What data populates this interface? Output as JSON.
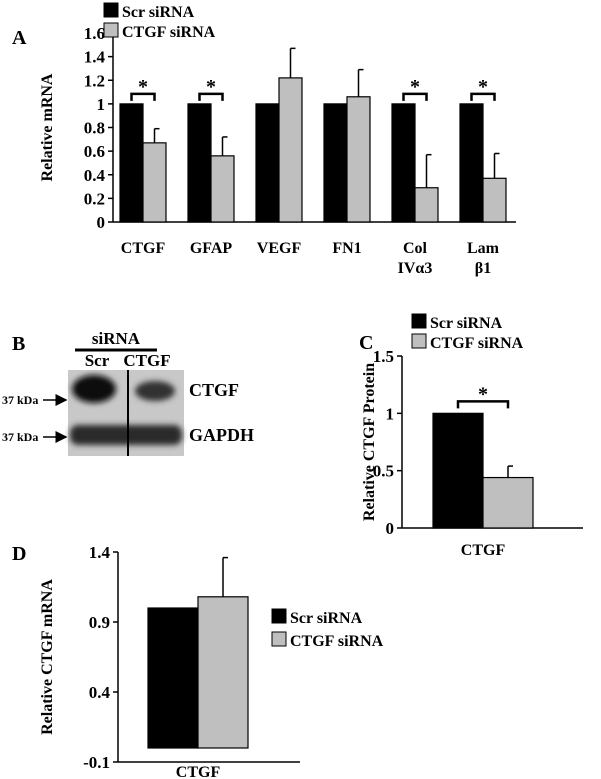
{
  "panel_labels": {
    "a": "A",
    "b": "B",
    "c": "C",
    "d": "D"
  },
  "colors": {
    "scr": "#000000",
    "ctgf": "#bfbfbf",
    "axis": "#000000"
  },
  "chart_data": [
    {
      "panel": "A",
      "type": "bar",
      "ylabel": "Relative mRNA",
      "ylim": [
        0,
        1.6
      ],
      "yticks": [
        "0",
        "0.2",
        "0.4",
        "0.6",
        "0.8",
        "1",
        "1.2",
        "1.4",
        "1.6"
      ],
      "categories": [
        [
          "CTGF"
        ],
        [
          "GFAP"
        ],
        [
          "VEGF"
        ],
        [
          "FN1"
        ],
        [
          "Col",
          "IVα3"
        ],
        [
          "Lam",
          "β1"
        ]
      ],
      "series": [
        {
          "name": "Scr siRNA",
          "values": [
            1,
            1,
            1,
            1,
            1,
            1
          ],
          "errors": [
            0,
            0,
            0,
            0,
            0,
            0
          ]
        },
        {
          "name": "CTGF siRNA",
          "values": [
            0.67,
            0.56,
            1.22,
            1.06,
            0.29,
            0.37
          ],
          "errors": [
            0.12,
            0.16,
            0.25,
            0.23,
            0.28,
            0.21
          ]
        }
      ],
      "significance": [
        "*",
        "*",
        "",
        "",
        "*",
        "*"
      ],
      "legend_position": "top-left"
    },
    {
      "panel": "C",
      "type": "bar",
      "ylabel": "Relative CTGF Protein",
      "ylim": [
        0,
        1.5
      ],
      "yticks": [
        "0",
        "0.5",
        "1",
        "1.5"
      ],
      "categories": [
        [
          "CTGF"
        ]
      ],
      "series": [
        {
          "name": "Scr siRNA",
          "values": [
            1
          ],
          "errors": [
            0
          ]
        },
        {
          "name": "CTGF siRNA",
          "values": [
            0.44
          ],
          "errors": [
            0.1
          ]
        }
      ],
      "significance": [
        "*"
      ],
      "legend_position": "top"
    },
    {
      "panel": "D",
      "type": "bar",
      "ylabel": "Relative CTGF mRNA",
      "ylim": [
        -0.1,
        1.4
      ],
      "yticks": [
        "-0.1",
        "0.4",
        "0.9",
        "1.4"
      ],
      "categories": [
        [
          "CTGF"
        ]
      ],
      "series": [
        {
          "name": "Scr siRNA",
          "values": [
            1
          ],
          "errors": [
            0
          ]
        },
        {
          "name": "CTGF siRNA",
          "values": [
            1.08
          ],
          "errors": [
            0.28
          ]
        }
      ],
      "significance": [
        ""
      ],
      "legend_position": "right"
    }
  ],
  "western_blot": {
    "header": "siRNA",
    "lanes": [
      "Scr",
      "CTGF"
    ],
    "bands": [
      {
        "marker": "37 kDa",
        "label": "CTGF"
      },
      {
        "marker": "37 kDa",
        "label": "GAPDH"
      }
    ]
  }
}
